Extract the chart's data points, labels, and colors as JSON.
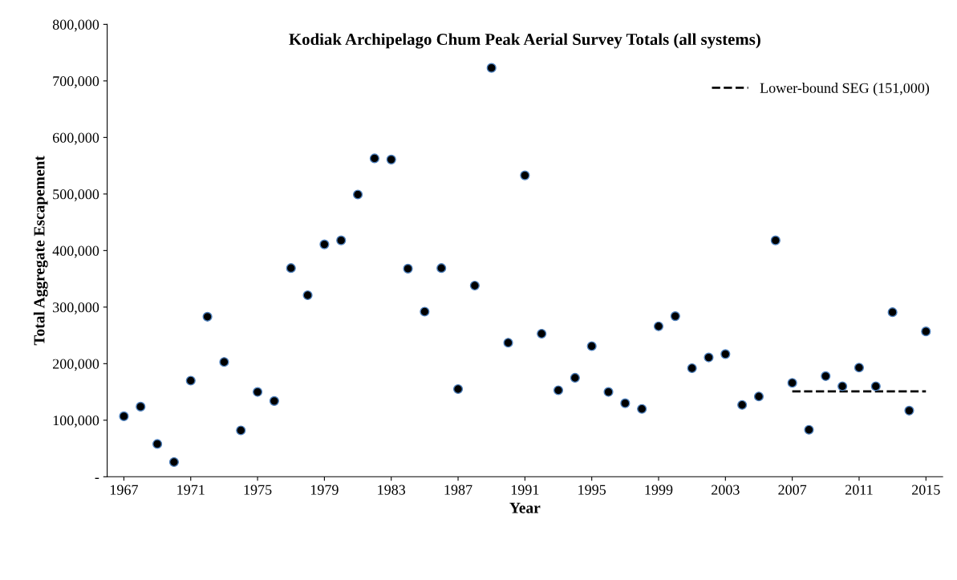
{
  "chart_data": {
    "type": "scatter",
    "title": "Kodiak Archipelago Chum Peak Aerial Survey Totals (all systems)",
    "xlabel": "Year",
    "ylabel": "Total Aggregate Escapement",
    "x": [
      1967,
      1968,
      1969,
      1970,
      1971,
      1972,
      1973,
      1974,
      1975,
      1976,
      1977,
      1978,
      1979,
      1980,
      1981,
      1982,
      1983,
      1984,
      1985,
      1986,
      1987,
      1988,
      1989,
      1990,
      1991,
      1992,
      1993,
      1994,
      1995,
      1996,
      1997,
      1998,
      1999,
      2000,
      2001,
      2002,
      2003,
      2004,
      2005,
      2006,
      2007,
      2008,
      2009,
      2010,
      2011,
      2012,
      2013,
      2014,
      2015
    ],
    "series": [
      {
        "marker": "circle",
        "color": "#000000",
        "values": [
          107000,
          124000,
          58000,
          26000,
          170000,
          283000,
          203000,
          82000,
          150000,
          134000,
          369000,
          321000,
          411000,
          418000,
          499000,
          563000,
          561000,
          368000,
          292000,
          369000,
          155000,
          338000,
          723000,
          237000,
          533000,
          253000,
          153000,
          175000,
          231000,
          150000,
          130000,
          120000,
          266000,
          284000,
          192000,
          211000,
          217000,
          127000,
          142000,
          418000,
          166000,
          83000,
          178000,
          160000,
          193000,
          160000,
          291000,
          117000,
          257000
        ]
      },
      {
        "type": "line",
        "name": "Lower-bound SEG (151,000)",
        "color": "#000000",
        "line_style": "dashed",
        "x": [
          2007,
          2015
        ],
        "values": [
          151000,
          151000
        ]
      }
    ],
    "legend": "top right",
    "grid": false,
    "xlim": [
      1966,
      2016
    ],
    "xticks": [
      1967,
      1971,
      1975,
      1979,
      1983,
      1987,
      1991,
      1995,
      1999,
      2003,
      2007,
      2011,
      2015
    ],
    "ylim": [
      0,
      800000
    ],
    "yticks": [
      {
        "value": 0,
        "label": "-"
      },
      {
        "value": 100000,
        "label": "100,000"
      },
      {
        "value": 200000,
        "label": "200,000"
      },
      {
        "value": 300000,
        "label": "300,000"
      },
      {
        "value": 400000,
        "label": "400,000"
      },
      {
        "value": 500000,
        "label": "500,000"
      },
      {
        "value": 600000,
        "label": "600,000"
      },
      {
        "value": 700000,
        "label": "700,000"
      },
      {
        "value": 800000,
        "label": "800,000"
      }
    ]
  }
}
